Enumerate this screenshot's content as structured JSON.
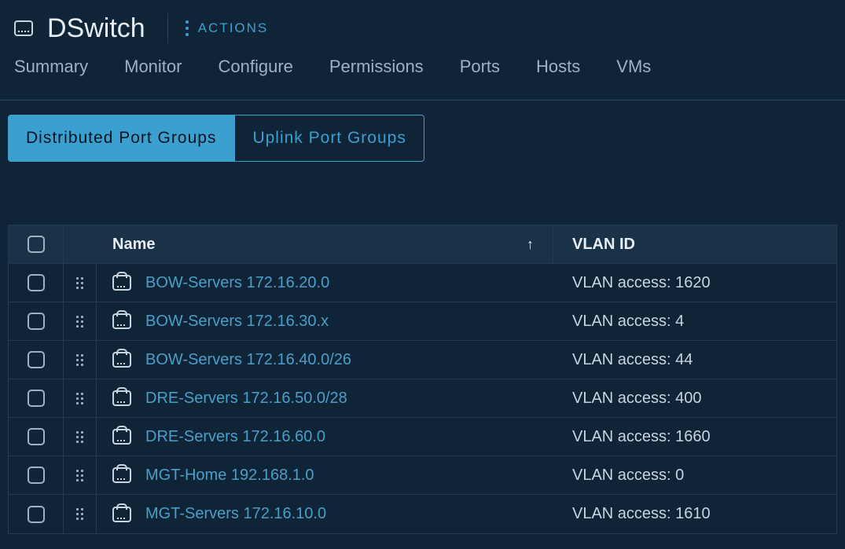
{
  "header": {
    "title": "DSwitch",
    "actions_label": "ACTIONS"
  },
  "tabs": [
    {
      "label": "Summary"
    },
    {
      "label": "Monitor"
    },
    {
      "label": "Configure"
    },
    {
      "label": "Permissions"
    },
    {
      "label": "Ports"
    },
    {
      "label": "Hosts"
    },
    {
      "label": "VMs"
    }
  ],
  "subtabs": {
    "active": "Distributed Port Groups",
    "inactive": "Uplink Port Groups"
  },
  "table": {
    "columns": {
      "name": "Name",
      "vlan": "VLAN ID"
    },
    "sort_indicator": "↑",
    "rows": [
      {
        "name": "BOW-Servers 172.16.20.0",
        "vlan": "VLAN access: 1620"
      },
      {
        "name": "BOW-Servers 172.16.30.x",
        "vlan": "VLAN access: 4"
      },
      {
        "name": "BOW-Servers 172.16.40.0/26",
        "vlan": "VLAN access: 44"
      },
      {
        "name": "DRE-Servers 172.16.50.0/28",
        "vlan": "VLAN access: 400"
      },
      {
        "name": "DRE-Servers 172.16.60.0",
        "vlan": "VLAN access: 1660"
      },
      {
        "name": "MGT-Home 192.168.1.0",
        "vlan": "VLAN access: 0"
      },
      {
        "name": "MGT-Servers 172.16.10.0",
        "vlan": "VLAN access: 1610"
      }
    ]
  },
  "colors": {
    "background": "#0f2437",
    "accent": "#3ba0d0",
    "link": "#4a9fc9",
    "text": "#c8d4df",
    "border": "#2a4458"
  }
}
